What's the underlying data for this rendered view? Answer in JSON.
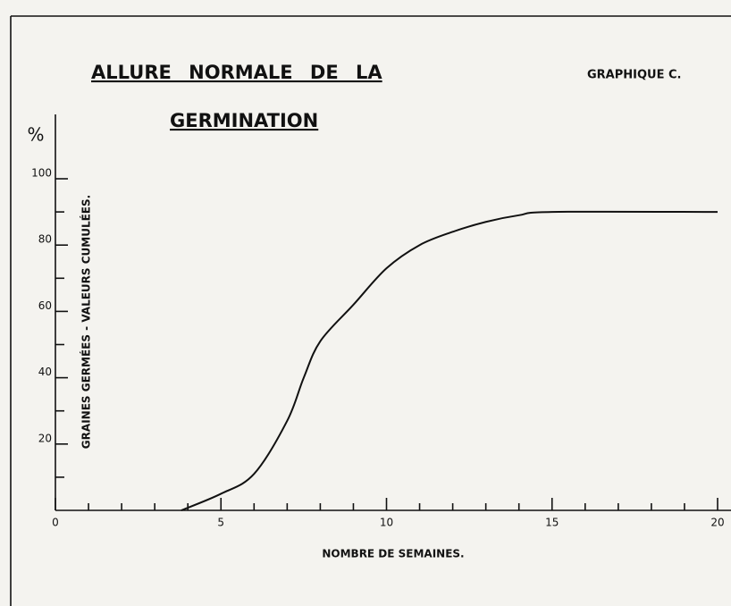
{
  "chart_data": {
    "type": "line",
    "title": [
      "ALLURE  NORMALE  DE  LA",
      "GERMINATION"
    ],
    "graph_label": "GRAPHIQUE C.",
    "ylabel": "GRAINES  GERMÉES - VALEURS  CUMULÉES.",
    "y_unit": "%",
    "xlabel": "NOMBRE    DE    SEMAINES.",
    "x": [
      3.8,
      5,
      6,
      7,
      7.5,
      8,
      9,
      10,
      11,
      12,
      13,
      14,
      15,
      20
    ],
    "values": [
      0,
      5,
      11,
      27,
      40,
      51,
      62,
      73,
      80,
      84,
      87,
      89,
      90,
      90
    ],
    "color": "#111111",
    "xlim": [
      0,
      20
    ],
    "xticks": [
      0,
      5,
      10,
      15,
      20
    ],
    "ylim": [
      0,
      100
    ],
    "yticks": [
      20,
      40,
      60,
      80,
      100
    ],
    "grid": false
  }
}
